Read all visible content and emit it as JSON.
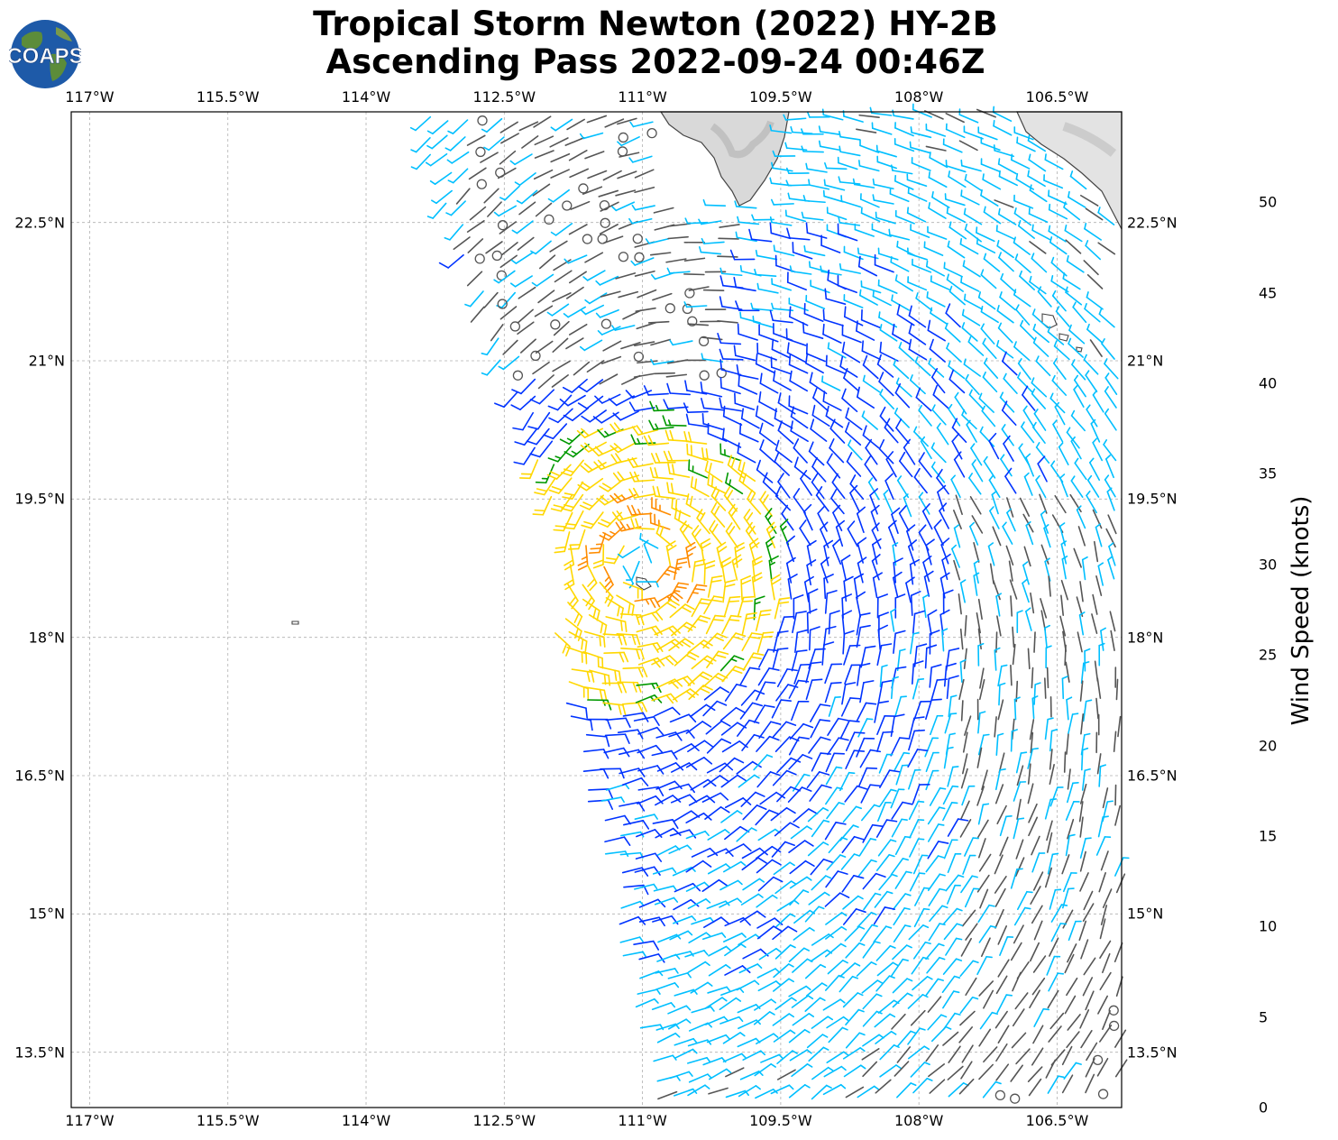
{
  "title": {
    "line1": "Tropical Storm Newton (2022) HY-2B",
    "line2": "Ascending Pass 2022-09-24 00:46Z"
  },
  "logo": {
    "text": "COAPS",
    "icon": "globe-icon"
  },
  "map": {
    "type": "scatterometer wind barbs",
    "lon_range": [
      -117.2,
      -105.8
    ],
    "lat_range": [
      12.9,
      23.7
    ],
    "x_ticks": [
      "117°W",
      "115.5°W",
      "114°W",
      "112.5°W",
      "111°W",
      "109.5°W",
      "108°W",
      "106.5°W"
    ],
    "y_ticks": [
      "22.5°N",
      "21°N",
      "19.5°N",
      "18°N",
      "16.5°N",
      "15°N",
      "13.5°N"
    ],
    "grid": true,
    "storm_center": {
      "lon": -111.0,
      "lat": 18.8
    }
  },
  "colorbar": {
    "label": "Wind Speed (knots)",
    "ticks": [
      "0",
      "5",
      "10",
      "15",
      "20",
      "25",
      "30",
      "35",
      "40",
      "45",
      "50"
    ],
    "colors": [
      "#555555",
      "#00bfff",
      "#0033ff",
      "#009900",
      "#ffd700",
      "#ff8c00",
      "#ff0000",
      "#8b3a2a",
      "#ee00ee",
      "#8800bb",
      "#2a0060"
    ]
  }
}
